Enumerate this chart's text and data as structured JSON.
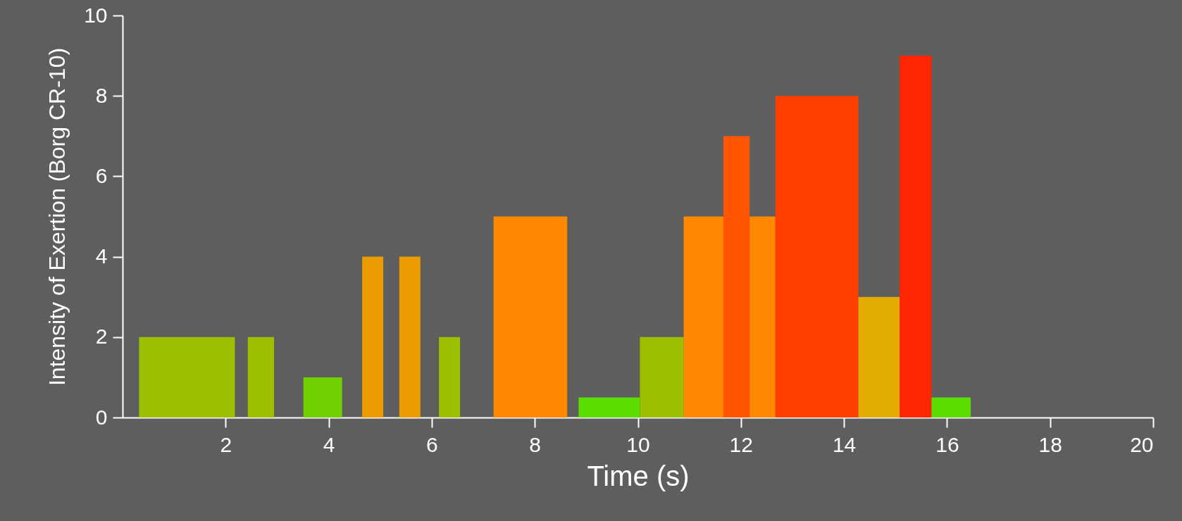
{
  "chart_data": {
    "type": "histogram",
    "xlabel": "Time (s)",
    "ylabel": "Intensity of Exertion (Borg CR-10)",
    "bins": [
      0.32,
      2.18,
      2.43,
      2.94,
      3.51,
      4.26,
      4.65,
      5.06,
      5.37,
      5.78,
      6.14,
      6.55,
      7.2,
      8.63,
      8.85,
      10.04,
      10.89,
      11.66,
      12.17,
      12.67,
      14.28,
      15.08,
      15.7,
      16.46
    ],
    "values": [
      2,
      0,
      2,
      0,
      1,
      0,
      4,
      0,
      4,
      0,
      2,
      0,
      5,
      0,
      0.5,
      2,
      5,
      7,
      5,
      8,
      3,
      9,
      0.5
    ],
    "colors": [
      "#9cbf00",
      "#5e5e5e",
      "#9cbf00",
      "#5e5e5e",
      "#6fd200",
      "#5e5e5e",
      "#ea9c00",
      "#5e5e5e",
      "#ea9c00",
      "#5e5e5e",
      "#9cbf00",
      "#5e5e5e",
      "#ff8800",
      "#5e5e5e",
      "#5cdd00",
      "#9cbf00",
      "#ff8800",
      "#ff5500",
      "#ff8800",
      "#ff3f00",
      "#e2ac00",
      "#ff2500",
      "#5cdd00"
    ],
    "xlim": [
      0,
      20
    ],
    "xticks": [
      2,
      4,
      6,
      8,
      10,
      12,
      14,
      16,
      18,
      20
    ],
    "ylim": [
      0,
      10
    ],
    "yticks": [
      0,
      2,
      4,
      6,
      8,
      10
    ],
    "grid": false,
    "legend": false
  }
}
